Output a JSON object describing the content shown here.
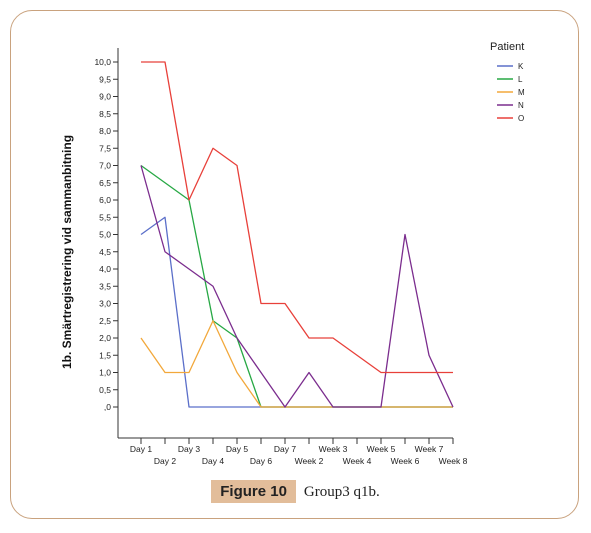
{
  "caption": {
    "figure_label": "Figure 10",
    "text": "Group3  q1b."
  },
  "chart_data": {
    "type": "line",
    "title": "",
    "xlabel": "",
    "ylabel": "1b. Smärtregistrering vid sammanbitning",
    "ylim": [
      0,
      10
    ],
    "grid": false,
    "legend_title": "Patient",
    "legend_position": "top-right",
    "categories": [
      "Day 1",
      "Day 2",
      "Day 3",
      "Day 4",
      "Day 5",
      "Day 6",
      "Day 7",
      "Week 2",
      "Week 3",
      "Week 4",
      "Week 5",
      "Week 6",
      "Week 7",
      "Week 8"
    ],
    "y_ticks": [
      0,
      0.5,
      1,
      1.5,
      2,
      2.5,
      3,
      3.5,
      4,
      4.5,
      5,
      5.5,
      6,
      6.5,
      7,
      7.5,
      8,
      8.5,
      9,
      9.5,
      10
    ],
    "y_tick_labels": [
      ",0",
      "0,5",
      "1,0",
      "1,5",
      "2,0",
      "2,5",
      "3,0",
      "3,5",
      "4,0",
      "4,5",
      "5,0",
      "5,5",
      "6,0",
      "6,5",
      "7,0",
      "7,5",
      "8,0",
      "8,5",
      "9,0",
      "9,5",
      "10,0"
    ],
    "series": [
      {
        "name": "K",
        "color": "#5b6fc9",
        "values": [
          5,
          5.5,
          0,
          0,
          0,
          0,
          0,
          0,
          0,
          0,
          0,
          0,
          0,
          0
        ]
      },
      {
        "name": "L",
        "color": "#27a844",
        "values": [
          7,
          6.5,
          6,
          2.5,
          2,
          0,
          0,
          0,
          0,
          0,
          0,
          0,
          0,
          0
        ]
      },
      {
        "name": "M",
        "color": "#f2a83b",
        "values": [
          2,
          1,
          1,
          2.5,
          1,
          0,
          0,
          0,
          0,
          0,
          0,
          0,
          0,
          0
        ]
      },
      {
        "name": "N",
        "color": "#7b2d8e",
        "values": [
          7,
          4.5,
          4,
          3.5,
          2,
          1,
          0,
          1,
          0,
          0,
          0,
          5,
          1.5,
          0
        ]
      },
      {
        "name": "O",
        "color": "#e8403a",
        "values": [
          10,
          10,
          6,
          7.5,
          7,
          3,
          3,
          2,
          2,
          1.5,
          1,
          1,
          1,
          1
        ]
      }
    ]
  }
}
